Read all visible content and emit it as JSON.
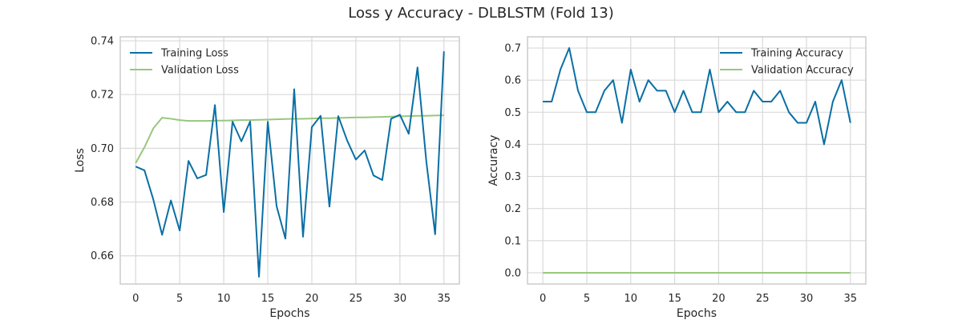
{
  "figure": {
    "title": "Loss y Accuracy - DLBLSTM (Fold 13)"
  },
  "colors": {
    "training": "#0a6fa5",
    "validation": "#98c77d",
    "grid": "#d9d9d9",
    "frame": "#cccccc"
  },
  "chart_data": [
    {
      "type": "line",
      "title": "",
      "xlabel": "Epochs",
      "ylabel": "Loss",
      "xlim": [
        -1.75,
        36.75
      ],
      "ylim": [
        0.6495,
        0.7415
      ],
      "xticks": [
        0,
        5,
        10,
        15,
        20,
        25,
        30,
        35
      ],
      "yticks": [
        0.66,
        0.68,
        0.7,
        0.72,
        0.74
      ],
      "ytick_labels": [
        "0.66",
        "0.68",
        "0.70",
        "0.72",
        "0.74"
      ],
      "grid": true,
      "legend": "top-left",
      "x": [
        0,
        1,
        2,
        3,
        4,
        5,
        6,
        7,
        8,
        9,
        10,
        11,
        12,
        13,
        14,
        15,
        16,
        17,
        18,
        19,
        20,
        21,
        22,
        23,
        24,
        25,
        26,
        27,
        28,
        29,
        30,
        31,
        32,
        33,
        34,
        35
      ],
      "series": [
        {
          "name": "Training Loss",
          "values": [
            0.6932,
            0.6918,
            0.681,
            0.6678,
            0.6806,
            0.6694,
            0.6953,
            0.6888,
            0.6901,
            0.7161,
            0.6763,
            0.7099,
            0.7026,
            0.71,
            0.6522,
            0.7099,
            0.6785,
            0.6664,
            0.722,
            0.6671,
            0.7079,
            0.7121,
            0.6783,
            0.712,
            0.703,
            0.6958,
            0.6992,
            0.6899,
            0.6882,
            0.711,
            0.7125,
            0.7054,
            0.7301,
            0.6951,
            0.668,
            0.7361
          ]
        },
        {
          "name": "Validation Loss",
          "values": [
            0.6945,
            0.7004,
            0.7074,
            0.7114,
            0.711,
            0.7105,
            0.7102,
            0.7102,
            0.7102,
            0.7103,
            0.7103,
            0.7104,
            0.7105,
            0.7105,
            0.7106,
            0.7107,
            0.7108,
            0.7109,
            0.711,
            0.711,
            0.7111,
            0.7112,
            0.7112,
            0.7113,
            0.7114,
            0.7115,
            0.7115,
            0.7116,
            0.7117,
            0.7118,
            0.7119,
            0.712,
            0.7121,
            0.7121,
            0.7122,
            0.7123
          ]
        }
      ]
    },
    {
      "type": "line",
      "title": "",
      "xlabel": "Epochs",
      "ylabel": "Accuracy",
      "xlim": [
        -1.75,
        36.75
      ],
      "ylim": [
        -0.035,
        0.735
      ],
      "xticks": [
        0,
        5,
        10,
        15,
        20,
        25,
        30,
        35
      ],
      "yticks": [
        0.0,
        0.1,
        0.2,
        0.3,
        0.4,
        0.5,
        0.6,
        0.7
      ],
      "ytick_labels": [
        "0.0",
        "0.1",
        "0.2",
        "0.3",
        "0.4",
        "0.5",
        "0.6",
        "0.7"
      ],
      "grid": true,
      "legend": "top-right",
      "x": [
        0,
        1,
        2,
        3,
        4,
        5,
        6,
        7,
        8,
        9,
        10,
        11,
        12,
        13,
        14,
        15,
        16,
        17,
        18,
        19,
        20,
        21,
        22,
        23,
        24,
        25,
        26,
        27,
        28,
        29,
        30,
        31,
        32,
        33,
        34,
        35
      ],
      "series": [
        {
          "name": "Training Accuracy",
          "values": [
            0.533,
            0.533,
            0.633,
            0.7,
            0.567,
            0.5,
            0.5,
            0.567,
            0.6,
            0.467,
            0.633,
            0.533,
            0.6,
            0.567,
            0.567,
            0.5,
            0.567,
            0.5,
            0.5,
            0.633,
            0.5,
            0.533,
            0.5,
            0.5,
            0.567,
            0.533,
            0.533,
            0.567,
            0.5,
            0.467,
            0.467,
            0.533,
            0.4,
            0.533,
            0.6,
            0.467
          ]
        },
        {
          "name": "Validation Accuracy",
          "values": [
            0,
            0,
            0,
            0,
            0,
            0,
            0,
            0,
            0,
            0,
            0,
            0,
            0,
            0,
            0,
            0,
            0,
            0,
            0,
            0,
            0,
            0,
            0,
            0,
            0,
            0,
            0,
            0,
            0,
            0,
            0,
            0,
            0,
            0,
            0,
            0
          ]
        }
      ]
    }
  ]
}
